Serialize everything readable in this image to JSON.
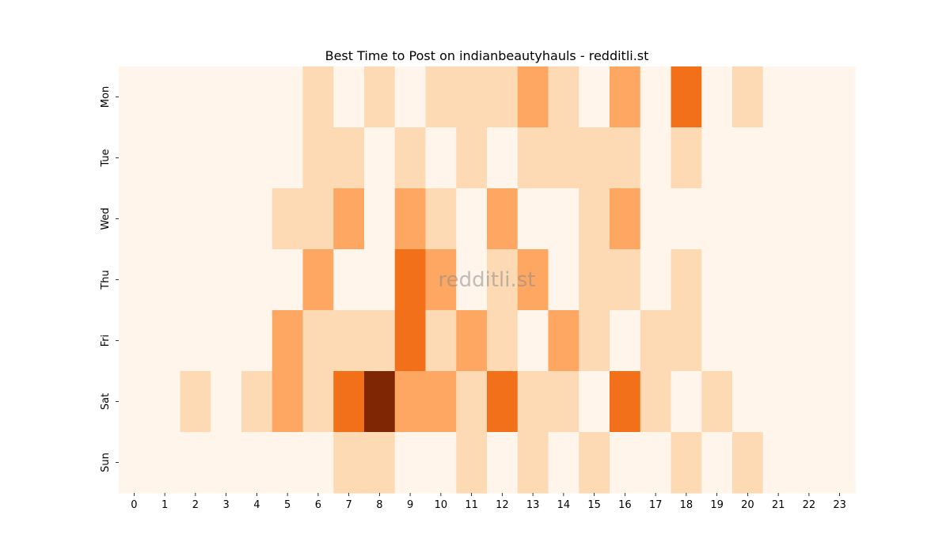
{
  "chart_data": {
    "type": "heatmap",
    "title": "Best Time to Post on indianbeautyhauls - redditli.st",
    "watermark": "redditli.st",
    "xlabel": "",
    "ylabel": "",
    "x": [
      "0",
      "1",
      "2",
      "3",
      "4",
      "5",
      "6",
      "7",
      "8",
      "9",
      "10",
      "11",
      "12",
      "13",
      "14",
      "15",
      "16",
      "17",
      "18",
      "19",
      "20",
      "21",
      "22",
      "23"
    ],
    "y": [
      "Mon",
      "Tue",
      "Wed",
      "Thu",
      "Fri",
      "Sat",
      "Sun"
    ],
    "values": [
      [
        0,
        0,
        0,
        0,
        0,
        0,
        1,
        0,
        1,
        0,
        1,
        1,
        1,
        2,
        1,
        0,
        2,
        0,
        3,
        0,
        1,
        0,
        0,
        0
      ],
      [
        0,
        0,
        0,
        0,
        0,
        0,
        1,
        1,
        0,
        1,
        0,
        1,
        0,
        1,
        1,
        1,
        1,
        0,
        1,
        0,
        0,
        0,
        0,
        0
      ],
      [
        0,
        0,
        0,
        0,
        0,
        1,
        1,
        2,
        0,
        2,
        1,
        0,
        2,
        0,
        0,
        1,
        2,
        0,
        0,
        0,
        0,
        0,
        0,
        0
      ],
      [
        0,
        0,
        0,
        0,
        0,
        0,
        2,
        0,
        0,
        3,
        2,
        0,
        1,
        2,
        0,
        1,
        1,
        0,
        1,
        0,
        0,
        0,
        0,
        0
      ],
      [
        0,
        0,
        0,
        0,
        0,
        2,
        1,
        1,
        1,
        3,
        1,
        2,
        1,
        0,
        2,
        1,
        0,
        1,
        1,
        0,
        0,
        0,
        0,
        0
      ],
      [
        0,
        0,
        1,
        0,
        1,
        2,
        1,
        3,
        5,
        2,
        2,
        1,
        3,
        1,
        1,
        0,
        3,
        1,
        0,
        1,
        0,
        0,
        0,
        0
      ],
      [
        0,
        0,
        0,
        0,
        0,
        0,
        0,
        1,
        1,
        0,
        0,
        1,
        0,
        1,
        0,
        1,
        0,
        0,
        1,
        0,
        1,
        0,
        0,
        0
      ]
    ],
    "colormap": "Oranges",
    "palette": [
      "#fff5eb",
      "#fdd9b4",
      "#fda762",
      "#f3701b",
      "#c54102",
      "#7f2704"
    ],
    "grid": false,
    "legend": "none"
  }
}
